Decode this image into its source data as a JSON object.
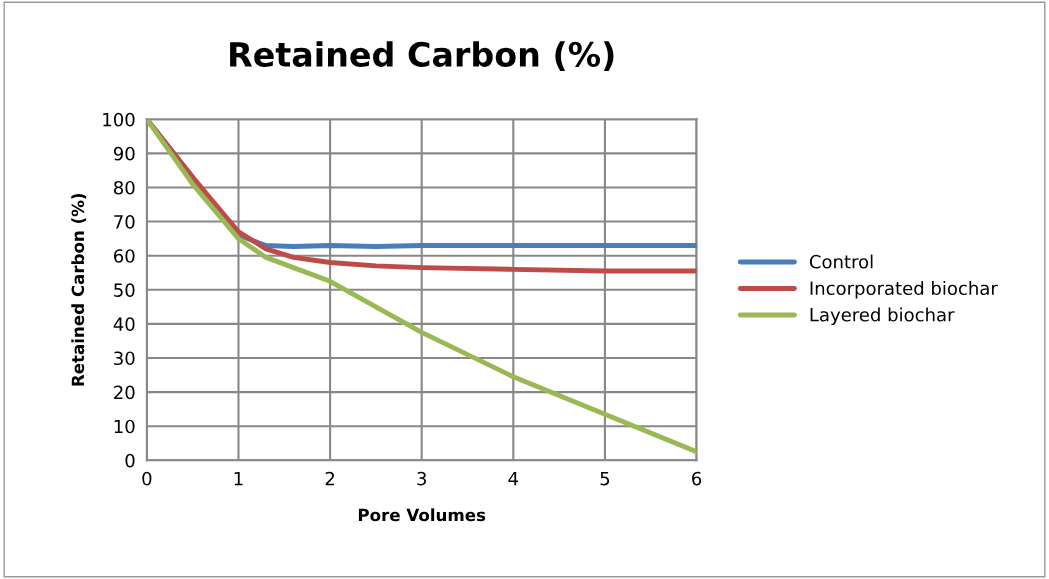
{
  "chart_data": {
    "type": "line",
    "title": "Retained Carbon (%)",
    "xlabel": "Pore Volumes",
    "ylabel": "Retained Carbon (%)",
    "xlim": [
      0,
      6
    ],
    "xticks": [
      0,
      1,
      2,
      3,
      4,
      5,
      6
    ],
    "ylim": [
      0,
      100
    ],
    "yticks": [
      0,
      10,
      20,
      30,
      40,
      50,
      60,
      70,
      80,
      90,
      100
    ],
    "grid": true,
    "legend": "right",
    "marker": "none",
    "line_style": "solid",
    "x": [
      0,
      0.5,
      1,
      1.3,
      1.6,
      2,
      2.5,
      3,
      4,
      5,
      6
    ],
    "series": [
      {
        "name": "Control",
        "color": "#4a7ebb",
        "x": [
          0,
          1,
          1.3,
          1.6,
          2,
          2.5,
          3,
          4,
          5,
          6
        ],
        "values": [
          100,
          66,
          63,
          62.7,
          63,
          62.7,
          63,
          63,
          63,
          63
        ]
      },
      {
        "name": "Incorporated biochar",
        "color": "#be4b48",
        "values": [
          100,
          83,
          67,
          62,
          59.5,
          58,
          57,
          56.5,
          56,
          55.5,
          55.5
        ]
      },
      {
        "name": "Layered biochar",
        "color": "#98b954",
        "values": [
          100,
          81,
          65,
          59.5,
          56.5,
          52.5,
          45,
          37.5,
          24.5,
          13.5,
          2.5
        ]
      }
    ]
  }
}
